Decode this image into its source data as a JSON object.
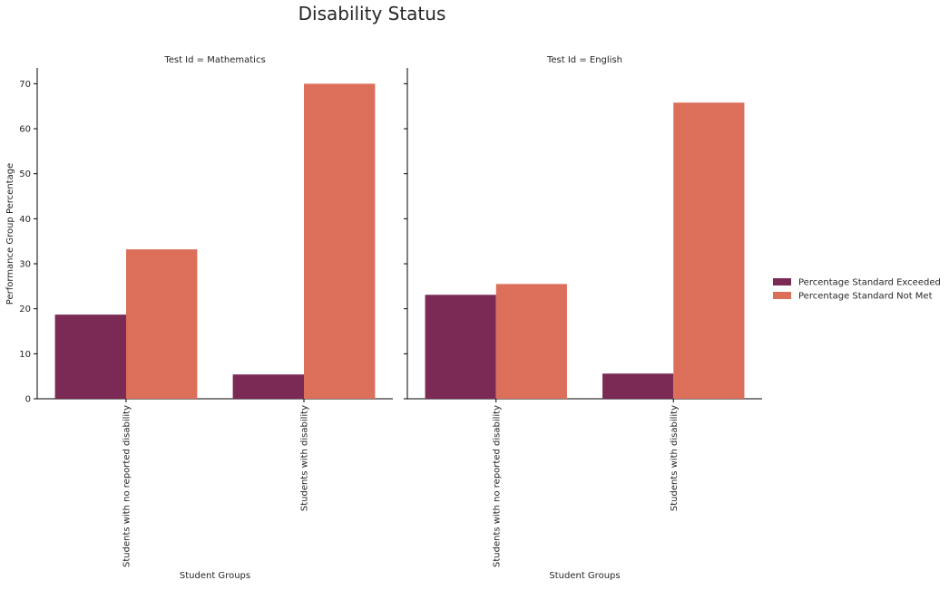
{
  "chart_data": {
    "type": "bar",
    "title": "Disability Status",
    "xlabel": "Student Groups",
    "ylabel": "Performance Group Percentage",
    "ylim": [
      0,
      73.5
    ],
    "yticks": [
      0,
      10,
      20,
      30,
      40,
      50,
      60,
      70
    ],
    "categories": [
      "Students with no reported disability",
      "Students with disability"
    ],
    "legend": {
      "placement": "right",
      "entries": [
        "Percentage Standard Exceeded",
        "Percentage Standard Not Met"
      ]
    },
    "colors": {
      "Percentage Standard Exceeded": "#7B2A56",
      "Percentage Standard Not Met": "#DC6F5A"
    },
    "facets": [
      {
        "title": "Test Id = Mathematics",
        "series": [
          {
            "name": "Percentage Standard Exceeded",
            "values": [
              18.7,
              5.4
            ]
          },
          {
            "name": "Percentage Standard Not Met",
            "values": [
              33.2,
              70.0
            ]
          }
        ]
      },
      {
        "title": "Test Id = English",
        "series": [
          {
            "name": "Percentage Standard Exceeded",
            "values": [
              23.1,
              5.6
            ]
          },
          {
            "name": "Percentage Standard Not Met",
            "values": [
              25.5,
              65.8
            ]
          }
        ]
      }
    ]
  }
}
